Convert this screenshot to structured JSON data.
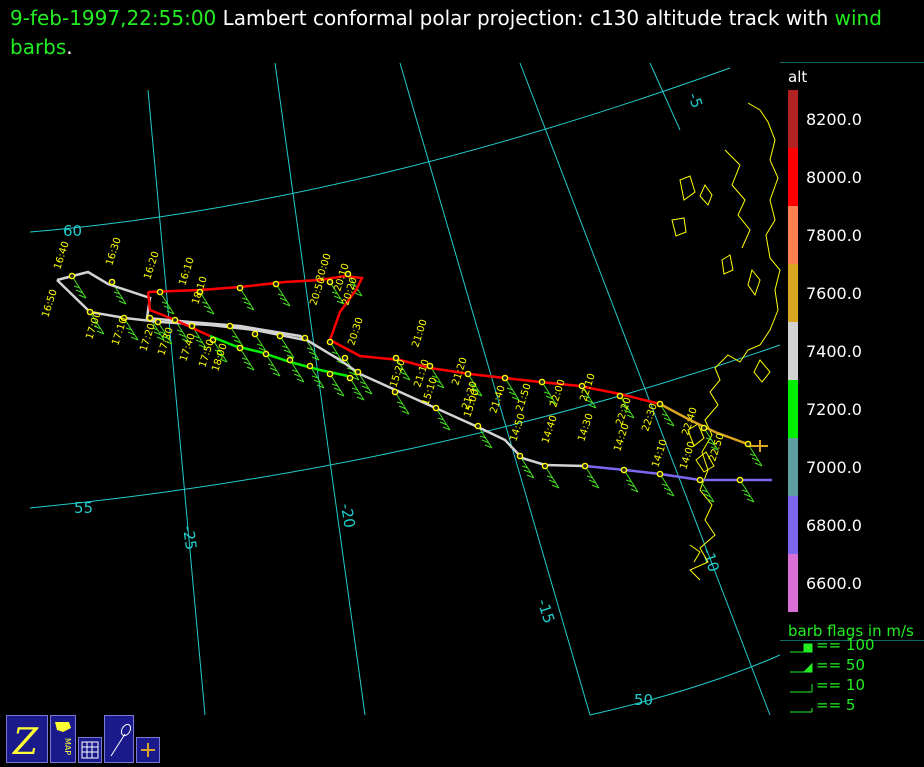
{
  "title": {
    "time": "9-feb-1997,22:55:00",
    "main": "Lambert conformal polar projection:  c130 altitude track with",
    "rest": "wind barbs",
    "period": "."
  },
  "map": {
    "lat_labels": [
      "60",
      "55",
      "50"
    ],
    "lon_labels": [
      "-5",
      "-10",
      "-15",
      "-20",
      "-25"
    ],
    "coast_color": "#ffff00",
    "grid_color": "#22cccc",
    "barb_color": "#44dd22",
    "marker_color": "#ffff00"
  },
  "track_times": [
    "16:40",
    "16:30",
    "16:20",
    "16:10",
    "16:50",
    "17:00",
    "17:10",
    "17:20",
    "17:30",
    "17:40",
    "17:50",
    "18:00",
    "18:10",
    "20:00",
    "20:10",
    "20:20",
    "20:30",
    "20:50",
    "21:00",
    "21:10",
    "21:20",
    "21:30",
    "21:40",
    "21:50",
    "22:00",
    "22:10",
    "22:20",
    "22:30",
    "22:40",
    "22:50",
    "15:20",
    "15:10",
    "15:00",
    "14:50",
    "14:40",
    "14:30",
    "14:20",
    "14:10",
    "14:00"
  ],
  "colorbar": {
    "title": "alt",
    "labels": [
      "8200.0",
      "8000.0",
      "7800.0",
      "7600.0",
      "7400.0",
      "7200.0",
      "7000.0",
      "6800.0",
      "6600.0"
    ],
    "colors": [
      "#b22222",
      "#ff0000",
      "#ff7f50",
      "#daa520",
      "#d3d3d3",
      "#00ee00",
      "#5f9ea0",
      "#7b68ee",
      "#da70d6"
    ]
  },
  "barb_legend": {
    "title": "barb flags in m/s",
    "items": [
      "== 100",
      "== 50",
      "== 10",
      "== 5"
    ]
  },
  "toolbar": {
    "buttons": [
      "zebra-logo-icon",
      "map-icon",
      "grid-icon",
      "pen-icon",
      "aircraft-icon"
    ],
    "map_label": "MAP"
  }
}
